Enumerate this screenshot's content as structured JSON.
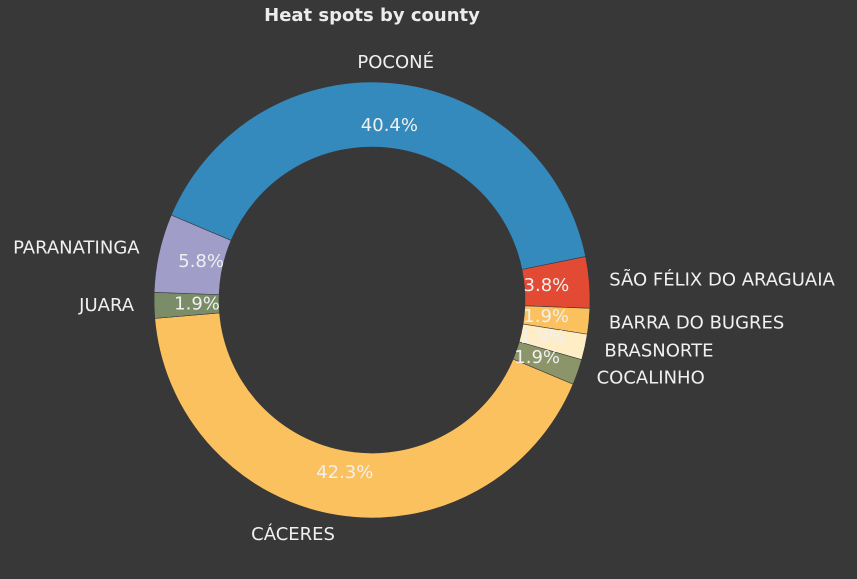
{
  "chart_data": {
    "type": "pie",
    "donut": true,
    "title": "Heat spots by county",
    "slices": [
      {
        "label": "POCONÉ",
        "value": 40.4,
        "pct_label": "40.4%",
        "color": "#348abd"
      },
      {
        "label": "SÃO FÉLIX DO ARAGUAIA",
        "value": 3.8,
        "pct_label": "3.8%",
        "color": "#e24a33"
      },
      {
        "label": "BARRA DO BUGRES",
        "value": 1.9,
        "pct_label": "1.9%",
        "color": "#fbc15e"
      },
      {
        "label": "BRASNORTE",
        "value": 1.9,
        "pct_label": "1.9%",
        "color": "#ffedc6"
      },
      {
        "label": "COCALINHO",
        "value": 1.9,
        "pct_label": "1.9%",
        "color": "#8c9469"
      },
      {
        "label": "CÁCERES",
        "value": 42.3,
        "pct_label": "42.3%",
        "color": "#fbc15e"
      },
      {
        "label": "JUARA",
        "value": 1.9,
        "pct_label": "1.9%",
        "color": "#7a8d68"
      },
      {
        "label": "PARANATINGA",
        "value": 5.8,
        "pct_label": "5.8%",
        "color": "#a09dc8"
      }
    ],
    "background": "#383838",
    "text_color": "#f0f0f0"
  }
}
